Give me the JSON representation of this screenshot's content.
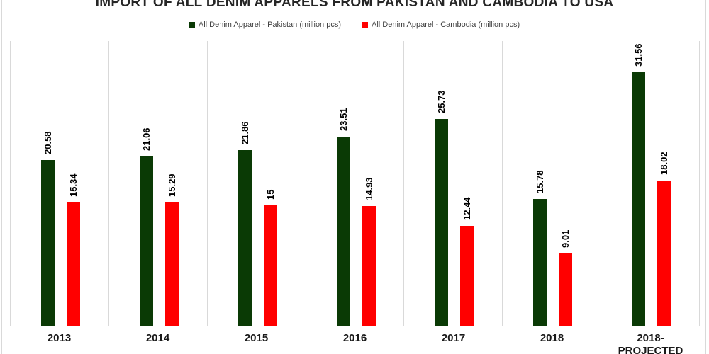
{
  "chart_data": {
    "type": "bar",
    "title": "IMPORT OF ALL DENIM APPARELS FROM PAKISTAN AND CAMBODIA TO USA",
    "categories": [
      "2013",
      "2014",
      "2015",
      "2016",
      "2017",
      "2018",
      "2018-PROJECTED"
    ],
    "series": [
      {
        "name": "All Denim Apparel - Pakistan (million pcs)",
        "color": "#0a3a05",
        "values": [
          20.58,
          21.06,
          21.86,
          23.51,
          25.73,
          15.78,
          31.56
        ]
      },
      {
        "name": "All Denim Apparel - Cambodia (million pcs)",
        "color": "#ff0000",
        "values": [
          15.34,
          15.29,
          15,
          14.93,
          12.44,
          9.01,
          18.02
        ]
      }
    ],
    "xlabel": "",
    "ylabel": "",
    "ylim": [
      0,
      35.5
    ],
    "y_axis_labels_visible": false,
    "grid": "vertical-category-separators",
    "legend_position": "top-center",
    "data_labels": "values rotated 90deg above each bar"
  },
  "colors": {
    "pakistan_bar": "#0a3a05",
    "cambodia_bar": "#ff0000",
    "gridline": "#d9d9d9",
    "axis_line": "#bfbfbf",
    "title_text": "#262626",
    "legend_text": "#404040",
    "label_text": "#000000",
    "background": "#ffffff"
  }
}
